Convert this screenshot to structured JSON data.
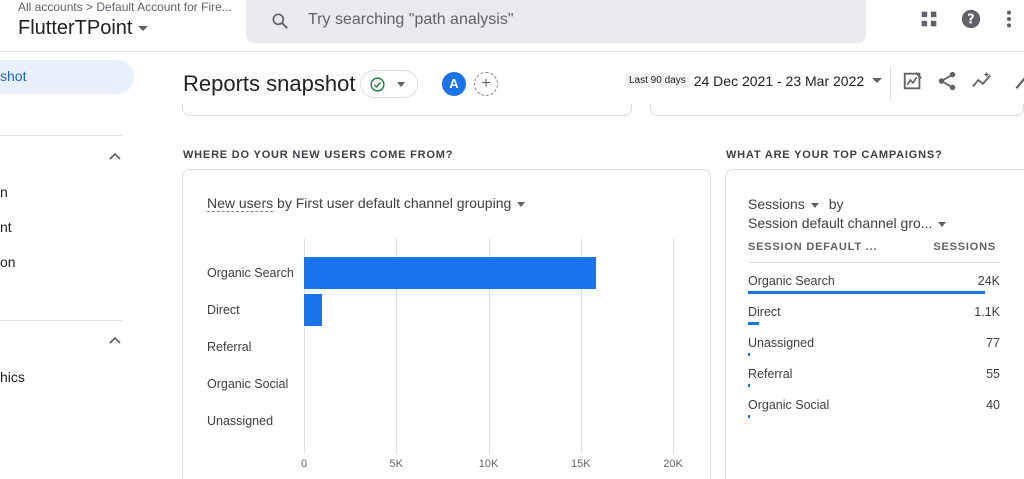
{
  "topbar": {
    "breadcrumb": "All accounts > Default Account for Fire...",
    "property": "FlutterTPoint",
    "search_placeholder": "Try searching \"path analysis\"",
    "icons": [
      "apps-icon",
      "help-icon",
      "more-vert-icon"
    ]
  },
  "sidebar": {
    "active_item": "shot",
    "items_group1": [
      "n",
      "nt",
      "on"
    ],
    "items_group2": [
      "hics"
    ]
  },
  "header": {
    "title": "Reports snapshot",
    "avatar_letter": "A",
    "add_label": "+",
    "date_prefix": "Last 90 days",
    "date_range": "24 Dec 2021 - 23 Mar 2022"
  },
  "sections": {
    "new_users": "WHERE DO YOUR NEW USERS COME FROM?",
    "campaigns": "WHAT ARE YOUR TOP CAMPAIGNS?"
  },
  "new_users_card": {
    "metric": "New users",
    "dimension_text": " by First user default channel grouping"
  },
  "chart_data": {
    "type": "bar",
    "orientation": "horizontal",
    "title": "New users by First user default channel grouping",
    "categories": [
      "Organic Search",
      "Direct",
      "Referral",
      "Organic Social",
      "Unassigned"
    ],
    "values": [
      15800,
      1000,
      0,
      0,
      0
    ],
    "xlim": [
      0,
      20000
    ],
    "ticks": [
      0,
      5000,
      10000,
      15000,
      20000
    ],
    "tick_labels": [
      "0",
      "5K",
      "10K",
      "15K",
      "20K"
    ],
    "grid": true,
    "color": "#1a73e8"
  },
  "campaigns_card": {
    "metric": "Sessions",
    "by": "by",
    "dimension": "Session default channel gro...",
    "col_dim": "SESSION DEFAULT ...",
    "col_metric": "SESSIONS",
    "rows": [
      {
        "label": "Organic Search",
        "value": "24K",
        "share": 0.94
      },
      {
        "label": "Direct",
        "value": "1.1K",
        "share": 0.045
      },
      {
        "label": "Unassigned",
        "value": "77",
        "share": 0.004
      },
      {
        "label": "Referral",
        "value": "55",
        "share": 0.003
      },
      {
        "label": "Organic Social",
        "value": "40",
        "share": 0.002
      }
    ]
  },
  "colors": {
    "accent": "#1a73e8",
    "status_ok": "#188038"
  }
}
